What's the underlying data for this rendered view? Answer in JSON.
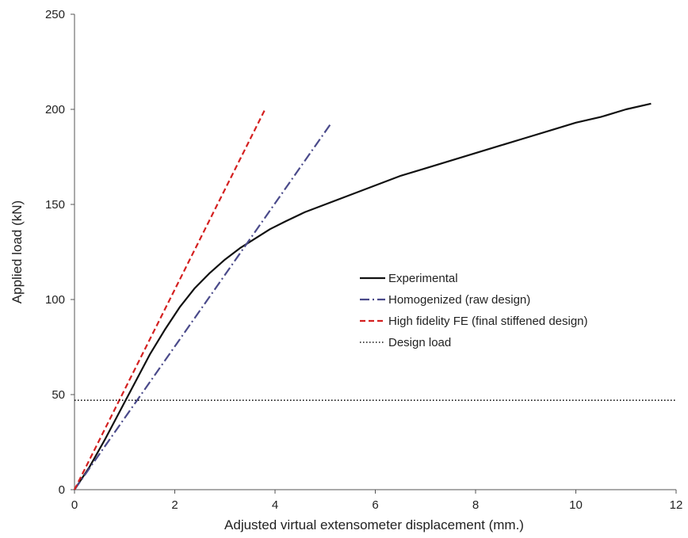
{
  "chart_data": {
    "type": "line",
    "title": "",
    "xlabel": "Adjusted virtual extensometer displacement (mm.)",
    "ylabel": "Applied load (kN)",
    "xlim": [
      0,
      12
    ],
    "ylim": [
      0,
      250
    ],
    "x_ticks": [
      0,
      2,
      4,
      6,
      8,
      10,
      12
    ],
    "y_ticks": [
      0,
      50,
      100,
      150,
      200,
      250
    ],
    "grid": false,
    "legend_position": "center-right",
    "series": [
      {
        "name": "Experimental",
        "style": "solid",
        "color": "#111111",
        "x": [
          0,
          0.3,
          0.6,
          0.9,
          1.2,
          1.5,
          1.8,
          2.1,
          2.4,
          2.7,
          3.0,
          3.3,
          3.6,
          3.9,
          4.2,
          4.6,
          5.0,
          5.5,
          6.0,
          6.5,
          7.0,
          7.5,
          8.0,
          8.5,
          9.0,
          9.5,
          10.0,
          10.5,
          11.0,
          11.5
        ],
        "y": [
          0,
          12,
          26,
          41,
          56,
          71,
          84,
          96,
          106,
          114,
          121,
          127,
          132,
          137,
          141,
          146,
          150,
          155,
          160,
          165,
          169,
          173,
          177,
          181,
          185,
          189,
          193,
          196,
          200,
          203
        ]
      },
      {
        "name": "Homogenized (raw design)",
        "style": "dashdot",
        "color": "#4a4a8a",
        "x": [
          0,
          5.1
        ],
        "y": [
          0,
          192
        ]
      },
      {
        "name": "High fidelity FE (final stiffened design)",
        "style": "dashed",
        "color": "#d42020",
        "x": [
          0,
          3.8
        ],
        "y": [
          0,
          200
        ]
      },
      {
        "name": "Design load",
        "style": "dotted",
        "color": "#111111",
        "x": [
          0,
          12
        ],
        "y": [
          47,
          47
        ]
      }
    ]
  }
}
